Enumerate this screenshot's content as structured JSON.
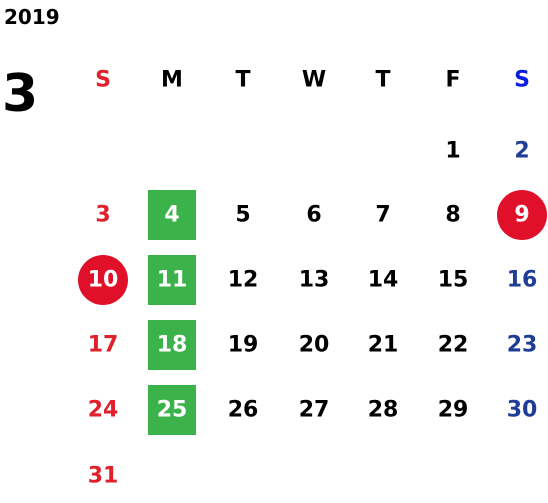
{
  "year": "2019",
  "month": "3",
  "weekdays": [
    "S",
    "M",
    "T",
    "W",
    "T",
    "F",
    "S"
  ],
  "header_colors": [
    "#e0202a",
    "#000000",
    "#000000",
    "#000000",
    "#000000",
    "#000000",
    "#0a1ee0"
  ],
  "column_colors": [
    "#e0202a",
    "#000000",
    "#000000",
    "#000000",
    "#000000",
    "#000000",
    "#1f3c96"
  ],
  "weeks": [
    [
      null,
      null,
      null,
      null,
      null,
      1,
      2
    ],
    [
      3,
      4,
      5,
      6,
      7,
      8,
      9
    ],
    [
      10,
      11,
      12,
      13,
      14,
      15,
      16
    ],
    [
      17,
      18,
      19,
      20,
      21,
      22,
      23
    ],
    [
      24,
      25,
      26,
      27,
      28,
      29,
      30
    ],
    [
      31,
      null,
      null,
      null,
      null,
      null,
      null
    ]
  ],
  "highlights": [
    {
      "shape": "square",
      "color": "#3cb34a",
      "days": [
        4,
        11,
        18,
        25
      ]
    },
    {
      "shape": "circle",
      "color": "#e0102a",
      "days": [
        9,
        10
      ]
    }
  ]
}
